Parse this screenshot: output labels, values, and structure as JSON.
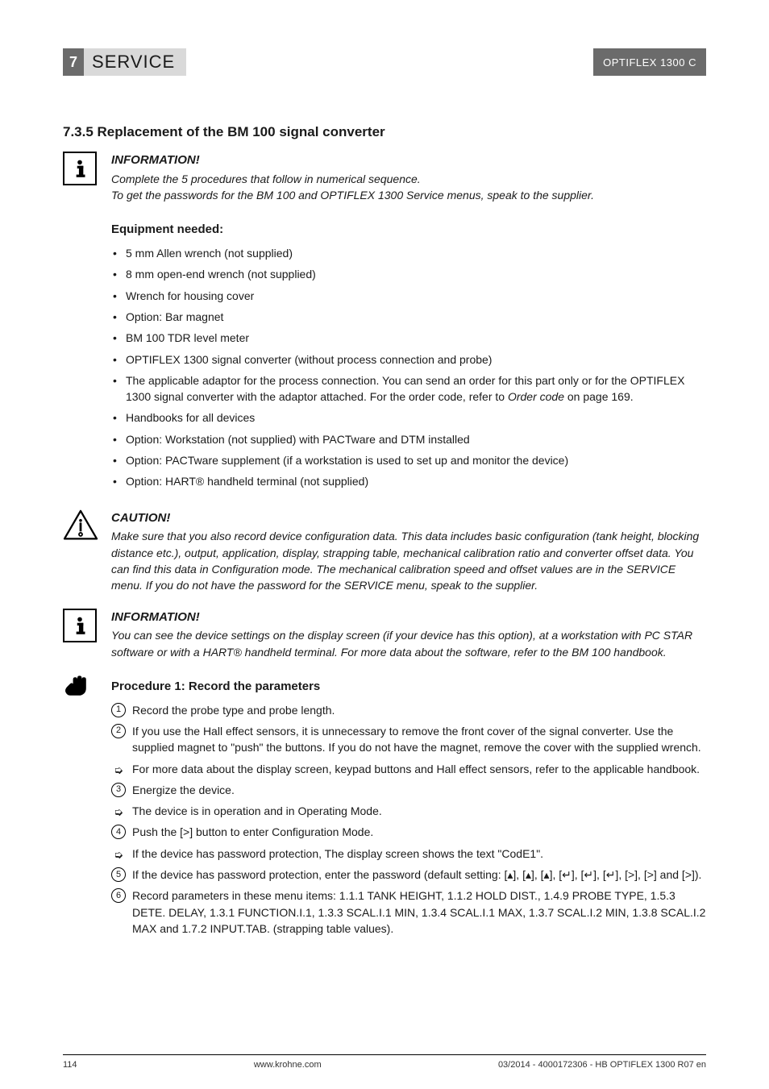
{
  "header": {
    "section_number": "7",
    "section_title": "SERVICE",
    "product": "OPTIFLEX 1300 C"
  },
  "heading": "7.3.5  Replacement of the BM 100 signal converter",
  "info1": {
    "title": "INFORMATION!",
    "line1": "Complete the 5 procedures that follow in numerical sequence.",
    "line2": "To get the passwords for the BM 100 and OPTIFLEX 1300 Service menus, speak to the supplier."
  },
  "equipment": {
    "heading": "Equipment needed:",
    "items": [
      "5 mm Allen wrench (not supplied)",
      "8 mm open-end wrench (not supplied)",
      "Wrench for housing cover",
      "Option: Bar magnet",
      "BM 100 TDR level meter",
      "OPTIFLEX 1300 signal converter (without process connection and probe)",
      "The applicable adaptor for the process connection. You can send an order for this part only or for the OPTIFLEX 1300 signal converter with the adaptor attached. For the order code, refer to Order code on page 169.",
      "Handbooks for all devices",
      "Option: Workstation (not supplied) with PACTware and DTM installed",
      "Option: PACTware supplement  (if a workstation is used to set up and monitor the device)",
      "Option: HART® handheld terminal (not supplied)"
    ]
  },
  "caution": {
    "title": "CAUTION!",
    "body": "Make sure that you also record device configuration data. This data includes basic configuration (tank height, blocking distance etc.), output, application, display, strapping table, mechanical calibration ratio and converter offset data. You can find this data in Configuration mode. The mechanical calibration speed and offset values are in the SERVICE menu. If you do not have the password for the SERVICE menu, speak to the supplier."
  },
  "info2": {
    "title": "INFORMATION!",
    "body": "You can see the device settings on the display screen (if your device has this option), at a workstation with PC STAR software or with a HART® handheld terminal. For more data about the software, refer to the BM 100 handbook."
  },
  "procedure": {
    "heading": "Procedure 1: Record the parameters",
    "steps": [
      {
        "n": "1",
        "text": "Record the probe type and probe length."
      },
      {
        "n": "2",
        "text": " If you use the Hall effect sensors, it is unnecessary to remove the front cover of the signal converter. Use the supplied magnet to \"push\" the buttons. If you do not have the magnet, remove the cover with the supplied wrench."
      },
      {
        "sub": true,
        "text": "For more data about the display screen, keypad buttons and Hall effect sensors,  refer to the applicable handbook."
      },
      {
        "n": "3",
        "text": "Energize the device."
      },
      {
        "sub": true,
        "text": "The device is in operation and in Operating Mode."
      },
      {
        "n": "4",
        "text": "Push the [>] button to enter Configuration Mode."
      },
      {
        "sub": true,
        "text": "If the device has password protection, The display screen shows the text \"CodE1\"."
      },
      {
        "n": "5",
        "text": "If the device has password protection, enter the password (default setting: [▴], [▴], [▴], [↵], [↵], [↵], [>], [>] and [>])."
      },
      {
        "n": "6",
        "text": "Record parameters in these menu items: 1.1.1 TANK HEIGHT, 1.1.2 HOLD DIST., 1.4.9 PROBE TYPE, 1.5.3 DETE. DELAY, 1.3.1 FUNCTION.I.1, 1.3.3 SCAL.I.1 MIN, 1.3.4 SCAL.I.1 MAX, 1.3.7 SCAL.I.2 MIN, 1.3.8 SCAL.I.2 MAX and 1.7.2 INPUT.TAB. (strapping table values)."
      }
    ]
  },
  "footer": {
    "page": "114",
    "url": "www.krohne.com",
    "docref": "03/2014 - 4000172306 - HB OPTIFLEX 1300 R07 en"
  },
  "colors": {
    "header_dark": "#6b6b6b",
    "header_light": "#d9d9d9",
    "text": "#1a1a1a"
  }
}
